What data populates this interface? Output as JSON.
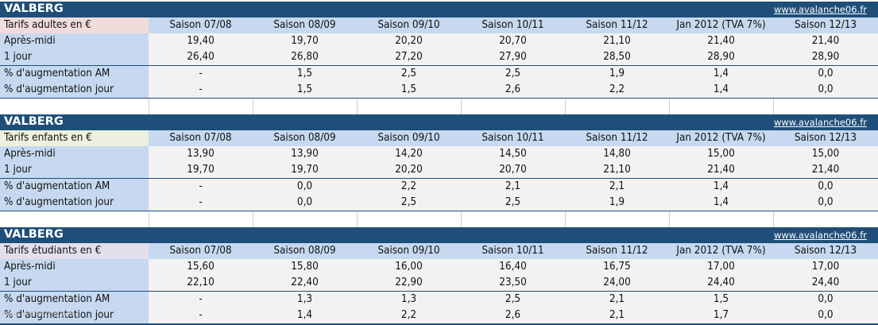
{
  "columns": [
    "Saison 07/08",
    "Saison 08/09",
    "Saison 09/10",
    "Saison 10/11",
    "Saison 11/12",
    "Jan 2012 (TVA 7%)",
    "Saison 12/13"
  ],
  "link": "www.avalanche06.fr",
  "watermark": "www.avalanche06.fr",
  "blocks": [
    {
      "title": "VALBERG",
      "category": "Tarifs adultes en €",
      "rows": [
        {
          "label": "Après-midi",
          "values": [
            "19,40",
            "19,70",
            "20,20",
            "20,70",
            "21,10",
            "21,40",
            "21,40"
          ]
        },
        {
          "label": "1 jour",
          "values": [
            "26,40",
            "26,80",
            "27,20",
            "27,90",
            "28,50",
            "28,90",
            "28,90"
          ]
        },
        {
          "label": "% d'augmentation AM",
          "values": [
            "-",
            "1,5",
            "2,5",
            "2,5",
            "1,9",
            "1,4",
            "0,0"
          ]
        },
        {
          "label": "% d'augmentation jour",
          "values": [
            "-",
            "1,5",
            "1,5",
            "2,6",
            "2,2",
            "1,4",
            "0,0"
          ]
        }
      ]
    },
    {
      "title": "VALBERG",
      "category": "Tarifs enfants en €",
      "rows": [
        {
          "label": "Après-midi",
          "values": [
            "13,90",
            "13,90",
            "14,20",
            "14,50",
            "14,80",
            "15,00",
            "15,00"
          ]
        },
        {
          "label": "1 jour",
          "values": [
            "19,70",
            "19,70",
            "20,20",
            "20,70",
            "21,10",
            "21,40",
            "21,40"
          ]
        },
        {
          "label": "% d'augmentation AM",
          "values": [
            "-",
            "0,0",
            "2,2",
            "2,1",
            "2,1",
            "1,4",
            "0,0"
          ]
        },
        {
          "label": "% d'augmentation jour",
          "values": [
            "-",
            "0,0",
            "2,5",
            "2,5",
            "1,9",
            "1,4",
            "0,0"
          ]
        }
      ]
    },
    {
      "title": "VALBERG",
      "category": "Tarifs étudiants en €",
      "rows": [
        {
          "label": "Après-midi",
          "values": [
            "15,60",
            "15,80",
            "16,00",
            "16,40",
            "16,75",
            "17,00",
            "17,00"
          ]
        },
        {
          "label": "1 jour",
          "values": [
            "22,10",
            "22,40",
            "22,90",
            "23,50",
            "24,00",
            "24,40",
            "24,40"
          ]
        },
        {
          "label": "% d'augmentation AM",
          "values": [
            "-",
            "1,3",
            "1,3",
            "2,5",
            "2,1",
            "1,5",
            "0,0"
          ]
        },
        {
          "label": "% d'augmentation jour",
          "values": [
            "-",
            "1,4",
            "2,2",
            "2,6",
            "2,1",
            "1,7",
            "0,0"
          ]
        }
      ]
    }
  ]
}
